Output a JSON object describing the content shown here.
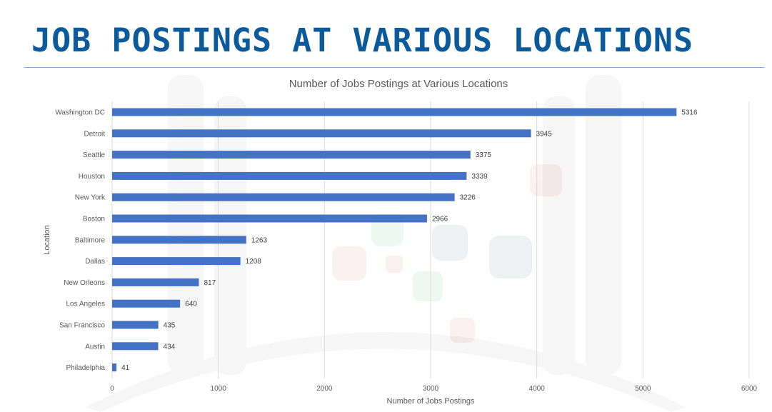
{
  "slide": {
    "title": "JOB POSTINGS AT VARIOUS LOCATIONS"
  },
  "colors": {
    "title": "#0b5b9c",
    "bar": "#4472c4",
    "grid": "#d9d9d9",
    "axis_text": "#595959"
  },
  "chart_data": {
    "type": "bar",
    "orientation": "horizontal",
    "title": "Number of Jobs Postings at Various Locations",
    "xlabel": "Number of Jobs Postings",
    "ylabel": "Location",
    "categories": [
      "Washington DC",
      "Detroit",
      "Seattle",
      "Houston",
      "New York",
      "Boston",
      "Baltimore",
      "Dallas",
      "New Orleons",
      "Los Angeles",
      "San Francisco",
      "Austin",
      "Philadelphia"
    ],
    "values": [
      5316,
      3945,
      3375,
      3339,
      3226,
      2966,
      1263,
      1208,
      817,
      640,
      435,
      434,
      41
    ],
    "xlim": [
      0,
      6000
    ],
    "xticks": [
      "0",
      "1000",
      "2000",
      "3000",
      "4000",
      "5000",
      "6000"
    ],
    "grid": true,
    "data_labels": true,
    "legend": "none"
  }
}
